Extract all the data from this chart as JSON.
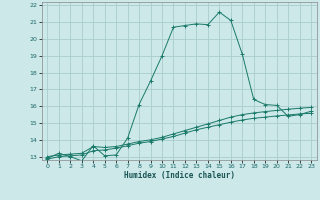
{
  "xlabel": "Humidex (Indice chaleur)",
  "bg_color": "#cce8e8",
  "grid_color": "#aacccc",
  "line_color": "#1a7a6a",
  "xlim": [
    -0.5,
    23.5
  ],
  "ylim": [
    12.8,
    22.2
  ],
  "xticks": [
    0,
    1,
    2,
    3,
    4,
    5,
    6,
    7,
    8,
    9,
    10,
    11,
    12,
    13,
    14,
    15,
    16,
    17,
    18,
    19,
    20,
    21,
    22,
    23
  ],
  "yticks": [
    13,
    14,
    15,
    16,
    17,
    18,
    19,
    20,
    21,
    22
  ],
  "series1_x": [
    0,
    1,
    2,
    3,
    4,
    5,
    6,
    7,
    8,
    9,
    10,
    11,
    12,
    13,
    14,
    15,
    16,
    17,
    18,
    19,
    20,
    21,
    22,
    23
  ],
  "series1_y": [
    12.9,
    13.2,
    13.0,
    12.75,
    13.65,
    13.05,
    13.1,
    14.1,
    16.1,
    17.5,
    19.0,
    20.7,
    20.8,
    20.9,
    20.85,
    21.6,
    21.1,
    19.1,
    16.4,
    16.1,
    16.05,
    15.4,
    15.5,
    15.7
  ],
  "series2_x": [
    0,
    1,
    2,
    3,
    4,
    5,
    6,
    7,
    8,
    9,
    10,
    11,
    12,
    13,
    14,
    15,
    16,
    17,
    18,
    19,
    20,
    21,
    22,
    23
  ],
  "series2_y": [
    13.0,
    13.1,
    13.15,
    13.2,
    13.6,
    13.55,
    13.6,
    13.75,
    13.9,
    14.0,
    14.15,
    14.35,
    14.55,
    14.75,
    14.95,
    15.15,
    15.35,
    15.5,
    15.6,
    15.68,
    15.75,
    15.82,
    15.88,
    15.93
  ],
  "series3_x": [
    0,
    1,
    2,
    3,
    4,
    5,
    6,
    7,
    8,
    9,
    10,
    11,
    12,
    13,
    14,
    15,
    16,
    17,
    18,
    19,
    20,
    21,
    22,
    23
  ],
  "series3_y": [
    12.85,
    13.0,
    13.05,
    13.1,
    13.35,
    13.4,
    13.5,
    13.65,
    13.8,
    13.9,
    14.05,
    14.2,
    14.4,
    14.6,
    14.75,
    14.9,
    15.05,
    15.18,
    15.28,
    15.35,
    15.42,
    15.48,
    15.54,
    15.58
  ]
}
